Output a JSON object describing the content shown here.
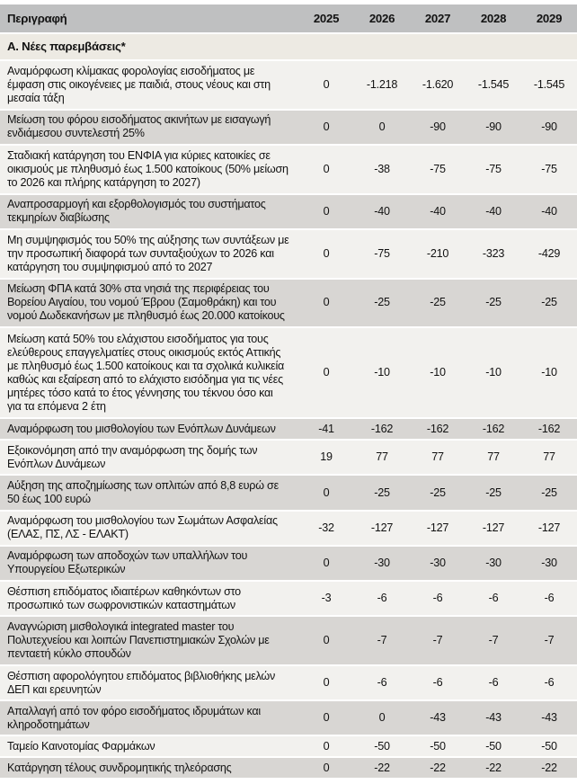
{
  "colors": {
    "header_bg": "#bfc0c1",
    "section_bg": "#edeae3",
    "row_light_bg": "#f2f1ee",
    "row_shade_bg": "#d8d6d3",
    "separator": "#ffffff",
    "text": "#121212"
  },
  "chart_data": {
    "type": "table",
    "columns": [
      "Περιγραφή",
      "2025",
      "2026",
      "2027",
      "2028",
      "2029"
    ],
    "section_title": "Α. Νέες παρεμβάσεις*",
    "rows": [
      {
        "desc": "Αναμόρφωση κλίμακας φορολογίας εισοδήματος με έμφαση στις οικογένειες με παιδιά, στους νέους και στη μεσαία τάξη",
        "values": [
          "0",
          "-1.218",
          "-1.620",
          "-1.545",
          "-1.545"
        ]
      },
      {
        "desc": "Μείωση του φόρου εισοδήματος ακινήτων με εισαγωγή ενδιάμεσου συντελεστή 25%",
        "values": [
          "0",
          "0",
          "-90",
          "-90",
          "-90"
        ]
      },
      {
        "desc": "Σταδιακή κατάργηση του ΕΝΦΙΑ για κύριες κατοικίες σε οικισμούς με πληθυσμό έως 1.500 κατοίκους (50% μείωση το 2026 και πλήρης κατάργηση το 2027)",
        "values": [
          "0",
          "-38",
          "-75",
          "-75",
          "-75"
        ]
      },
      {
        "desc": "Αναπροσαρμογή και εξορθολογισμός του συστήματος τεκμηρίων διαβίωσης",
        "values": [
          "0",
          "-40",
          "-40",
          "-40",
          "-40"
        ]
      },
      {
        "desc": "Μη συμψηφισμός του 50% της αύξησης των συντάξεων με την προσωπική διαφορά των συνταξιούχων το 2026 και κατάργηση του συμψηφισμού από το 2027",
        "values": [
          "0",
          "-75",
          "-210",
          "-323",
          "-429"
        ]
      },
      {
        "desc": "Μείωση ΦΠΑ κατά 30% στα νησιά της περιφέρειας του Βορείου Αιγαίου, του νομού Έβρου (Σαμοθράκη) και του νομού Δωδεκανήσων με πληθυσμό έως 20.000 κατοίκους",
        "values": [
          "0",
          "-25",
          "-25",
          "-25",
          "-25"
        ]
      },
      {
        "desc": "Μείωση κατά 50% του ελάχιστου εισοδήματος για τους ελεύθερους επαγγελματίες στους οικισμούς εκτός Αττικής με πληθυσμό έως 1.500 κατοίκους και τα σχολικά κυλικεία καθώς και εξαίρεση από το ελάχιστο εισόδημα για τις νέες μητέρες τόσο κατά το έτος γέννησης του τέκνου όσο και για τα επόμενα 2 έτη",
        "values": [
          "0",
          "-10",
          "-10",
          "-10",
          "-10"
        ]
      },
      {
        "desc": "Αναμόρφωση του μισθολογίου των Ενόπλων Δυνάμεων",
        "values": [
          "-41",
          "-162",
          "-162",
          "-162",
          "-162"
        ]
      },
      {
        "desc": "Εξοικονόμηση από την αναμόρφωση της δομής των Ενόπλων Δυνάμεων",
        "values": [
          "19",
          "77",
          "77",
          "77",
          "77"
        ]
      },
      {
        "desc": "Αύξηση της αποζημίωσης των οπλιτών από 8,8 ευρώ σε 50 έως 100 ευρώ",
        "values": [
          "0",
          "-25",
          "-25",
          "-25",
          "-25"
        ]
      },
      {
        "desc": "Αναμόρφωση του μισθολογίου των Σωμάτων Ασφαλείας (ΕΛΑΣ, ΠΣ, ΛΣ - ΕΛΑΚΤ)",
        "values": [
          "-32",
          "-127",
          "-127",
          "-127",
          "-127"
        ]
      },
      {
        "desc": "Αναμόρφωση των αποδοχών των υπαλλήλων του Υπουργείου Εξωτερικών",
        "values": [
          "0",
          "-30",
          "-30",
          "-30",
          "-30"
        ]
      },
      {
        "desc": "Θέσπιση επιδόματος ιδιαιτέρων καθηκόντων στο προσωπικό των σωφρονιστικών καταστημάτων",
        "values": [
          "-3",
          "-6",
          "-6",
          "-6",
          "-6"
        ]
      },
      {
        "desc": "Αναγνώριση μισθολογικά integrated master του Πολυτεχνείου και λοιπών Πανεπιστημιακών Σχολών με πενταετή κύκλο σπουδών",
        "values": [
          "0",
          "-7",
          "-7",
          "-7",
          "-7"
        ]
      },
      {
        "desc": "Θέσπιση αφορολόγητου επιδόματος βιβλιοθήκης μελών ΔΕΠ και ερευνητών",
        "values": [
          "0",
          "-6",
          "-6",
          "-6",
          "-6"
        ]
      },
      {
        "desc": "Απαλλαγή από τον φόρο εισοδήματος ιδρυμάτων και κληροδοτημάτων",
        "values": [
          "0",
          "0",
          "-43",
          "-43",
          "-43"
        ]
      },
      {
        "desc": "Ταμείο Καινοτομίας Φαρμάκων",
        "values": [
          "0",
          "-50",
          "-50",
          "-50",
          "-50"
        ]
      },
      {
        "desc": "Κατάργηση τέλους συνδρομητικής τηλεόρασης",
        "values": [
          "0",
          "-22",
          "-22",
          "-22",
          "-22"
        ]
      }
    ]
  }
}
